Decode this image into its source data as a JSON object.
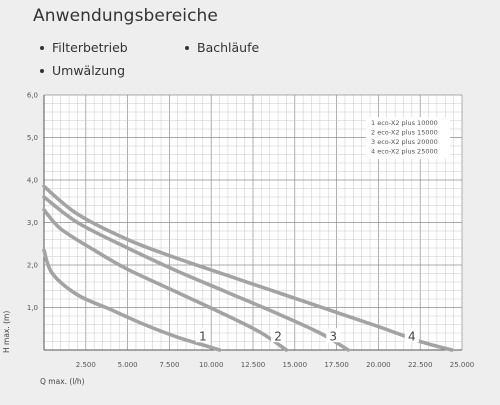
{
  "page": {
    "title": "Anwendungsbereiche",
    "bullets": [
      "Filterbetrieb",
      "Umwälzung",
      "Bachläufe"
    ]
  },
  "chart_data": {
    "type": "line",
    "xlabel": "Q max. (l/h)",
    "ylabel": "H max. (m)",
    "xlim": [
      0,
      25000
    ],
    "ylim": [
      0,
      6.0
    ],
    "grid": true,
    "x_ticks": [
      "2.500",
      "5.000",
      "7.500",
      "10.000",
      "12.500",
      "15.000",
      "17.500",
      "20.000",
      "22.500",
      "25.000"
    ],
    "y_ticks": [
      "1,0",
      "2,0",
      "3,0",
      "4,0",
      "5,0",
      "6,0"
    ],
    "legend": [
      "1 eco-X2 plus 10000",
      "2 eco-X2 plus 15000",
      "3 eco-X2 plus 20000",
      "4 eco-X2 plus 25000"
    ],
    "legend_position": "top-right",
    "series": [
      {
        "name": "1",
        "x": [
          0,
          500,
          2000,
          4000,
          6000,
          8000,
          9500,
          10500
        ],
        "y": [
          2.35,
          1.8,
          1.3,
          0.95,
          0.6,
          0.3,
          0.12,
          0
        ]
      },
      {
        "name": "2",
        "x": [
          0,
          1000,
          3000,
          5000,
          8000,
          11000,
          13000,
          14500
        ],
        "y": [
          3.3,
          2.85,
          2.35,
          1.9,
          1.35,
          0.8,
          0.4,
          0
        ]
      },
      {
        "name": "3",
        "x": [
          0,
          2000,
          5000,
          8000,
          11000,
          14000,
          16500,
          18200
        ],
        "y": [
          3.6,
          3.0,
          2.4,
          1.85,
          1.35,
          0.85,
          0.4,
          0
        ]
      },
      {
        "name": "4",
        "x": [
          0,
          2000,
          5000,
          8000,
          11000,
          14000,
          17000,
          20000,
          22500,
          24400
        ],
        "y": [
          3.85,
          3.2,
          2.6,
          2.15,
          1.75,
          1.35,
          0.95,
          0.55,
          0.2,
          0
        ]
      }
    ],
    "curve_labels": [
      {
        "text": "1",
        "x": 9500,
        "y": 0.3
      },
      {
        "text": "2",
        "x": 14000,
        "y": 0.3
      },
      {
        "text": "3",
        "x": 17300,
        "y": 0.3
      },
      {
        "text": "4",
        "x": 22000,
        "y": 0.3
      }
    ]
  }
}
